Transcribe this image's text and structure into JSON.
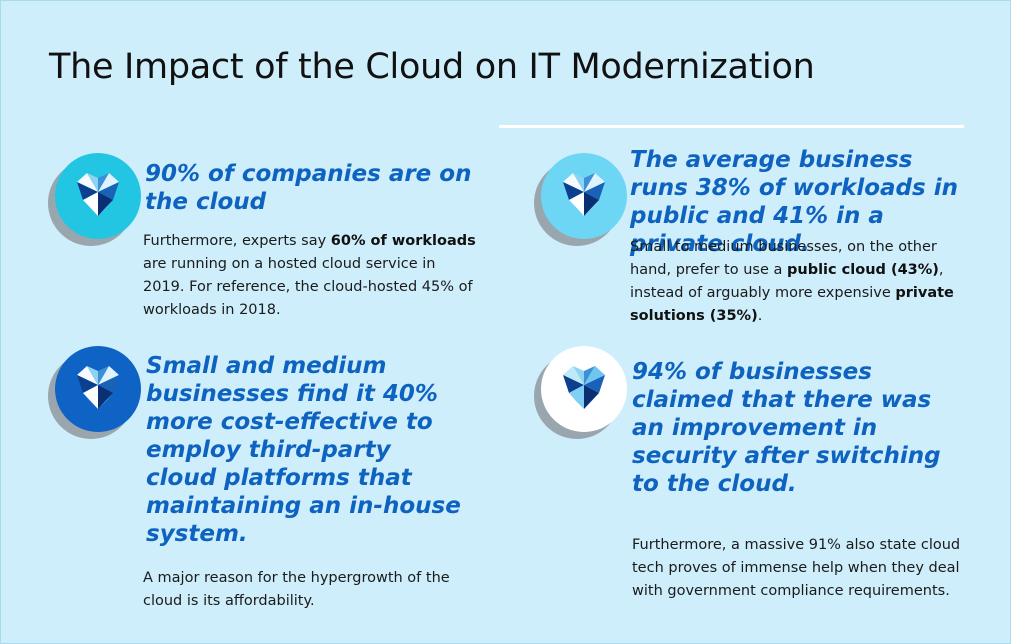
{
  "title": "The Impact of the Cloud on IT Modernization",
  "colors": {
    "background": "#cdeefa",
    "accent_text": "#0e62c0",
    "icon_cyan": "#22c6e3",
    "icon_sky": "#6dd6f5",
    "icon_blue": "#0f63c4",
    "icon_white": "#ffffff"
  },
  "cards": [
    {
      "icon": "heart-gem-icon",
      "stat": "90% of companies are on the cloud",
      "body": {
        "t1": "Furthermore, experts say ",
        "b1": "60% of workloads",
        "t2": " are running on a hosted cloud service in 2019. For reference, the cloud-hosted 45% of workloads in 2018."
      }
    },
    {
      "icon": "heart-gem-icon",
      "stat": "The average business runs 38% of workloads in public and 41% in a private cloud.",
      "body": {
        "t1": "Small to medium businesses, on the other hand, prefer to use a ",
        "b1": "public cloud (43%)",
        "t2": ", instead of arguably more expensive ",
        "b2": "private solutions (35%)",
        "t3": "."
      }
    },
    {
      "icon": "heart-gem-icon",
      "stat": "Small and medium businesses find it 40% more cost-effective to employ third-party cloud platforms that maintaining an in-house system.",
      "body": "A major reason for the hypergrowth of the cloud is its affordability."
    },
    {
      "icon": "heart-gem-icon",
      "stat": "94% of businesses claimed that there was an improvement in security after switching to the cloud.",
      "body": "Furthermore, a massive 91% also state cloud tech proves of immense help when they deal with government compliance requirements."
    }
  ]
}
